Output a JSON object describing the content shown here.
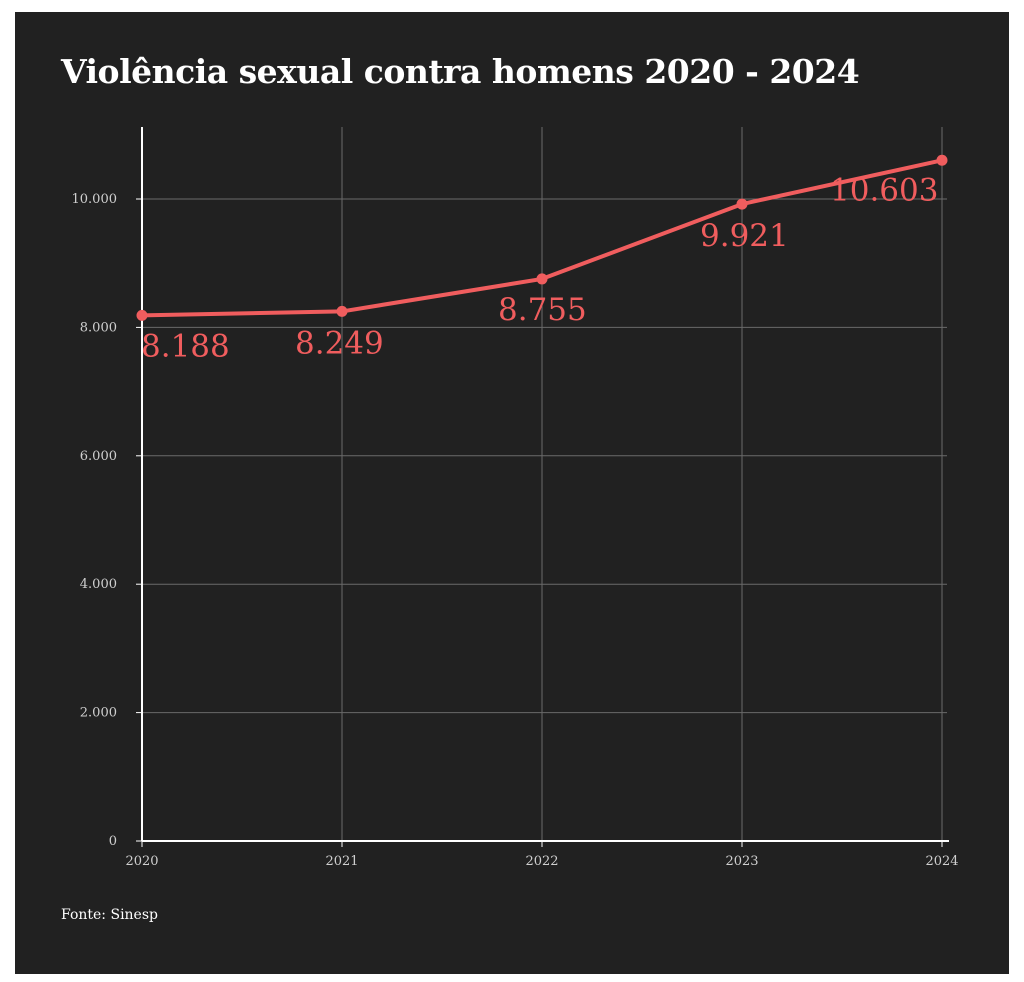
{
  "chart_data": {
    "type": "line",
    "title": "Violência sexual contra homens 2020 - 2024",
    "source": "Fonte: Sinesp",
    "xlabel": "",
    "ylabel": "",
    "categories": [
      "2020",
      "2021",
      "2022",
      "2023",
      "2024"
    ],
    "series": [
      {
        "values": [
          8188,
          8249,
          8755,
          9921,
          10603
        ],
        "labels": [
          "8.188",
          "8.249",
          "8.755",
          "9.921",
          "10.603"
        ]
      }
    ],
    "ylim": [
      0,
      11000
    ],
    "yticks": [
      0,
      2000,
      4000,
      6000,
      8000,
      10000
    ],
    "ytick_labels": [
      "0",
      "2.000",
      "4.000",
      "6.000",
      "8.000",
      "10.000"
    ],
    "grid": true,
    "legend": "none",
    "colors": {
      "background": "#212121",
      "line": "#f05d5e",
      "grid": "#6a6a6a",
      "text": "#ffffff",
      "axis_text": "#cfcfcf"
    }
  }
}
